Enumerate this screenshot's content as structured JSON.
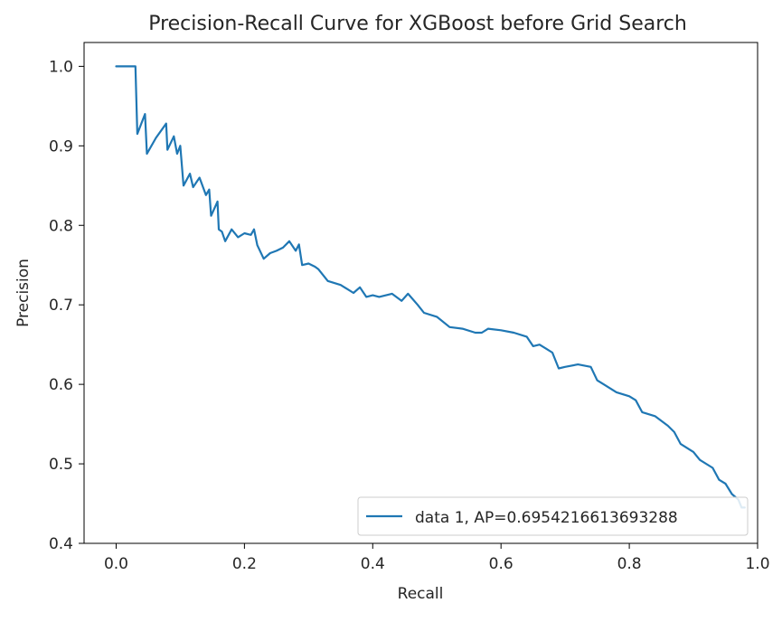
{
  "chart_data": {
    "type": "line",
    "title": "Precision-Recall Curve for XGBoost before Grid Search",
    "xlabel": "Recall",
    "ylabel": "Precision",
    "xlim": [
      -0.05,
      1.0
    ],
    "ylim": [
      0.4,
      1.03
    ],
    "xticks": [
      0.0,
      0.2,
      0.4,
      0.6,
      0.8,
      1.0
    ],
    "xtick_labels": [
      "0.0",
      "0.2",
      "0.4",
      "0.6",
      "0.8",
      "1.0"
    ],
    "yticks": [
      0.4,
      0.5,
      0.6,
      0.7,
      0.8,
      0.9,
      1.0
    ],
    "ytick_labels": [
      "0.4",
      "0.5",
      "0.6",
      "0.7",
      "0.8",
      "0.9",
      "1.0"
    ],
    "grid": false,
    "legend_position": "lower right",
    "series": [
      {
        "name": "data 1, AP=0.6954216613693288",
        "color": "#1f77b4",
        "x": [
          0.0,
          0.03,
          0.033,
          0.045,
          0.048,
          0.062,
          0.078,
          0.08,
          0.09,
          0.095,
          0.1,
          0.105,
          0.115,
          0.12,
          0.13,
          0.14,
          0.145,
          0.148,
          0.158,
          0.16,
          0.165,
          0.17,
          0.18,
          0.19,
          0.2,
          0.21,
          0.215,
          0.22,
          0.23,
          0.24,
          0.25,
          0.26,
          0.27,
          0.28,
          0.285,
          0.29,
          0.3,
          0.31,
          0.315,
          0.33,
          0.35,
          0.36,
          0.37,
          0.38,
          0.39,
          0.4,
          0.41,
          0.43,
          0.445,
          0.455,
          0.47,
          0.48,
          0.5,
          0.52,
          0.54,
          0.56,
          0.57,
          0.58,
          0.6,
          0.62,
          0.64,
          0.65,
          0.66,
          0.67,
          0.68,
          0.69,
          0.7,
          0.72,
          0.74,
          0.75,
          0.76,
          0.78,
          0.8,
          0.81,
          0.82,
          0.84,
          0.86,
          0.87,
          0.88,
          0.9,
          0.91,
          0.93,
          0.94,
          0.95,
          0.96,
          0.97,
          0.975,
          0.98
        ],
        "y": [
          1.0,
          1.0,
          0.915,
          0.94,
          0.89,
          0.91,
          0.928,
          0.895,
          0.912,
          0.89,
          0.9,
          0.85,
          0.865,
          0.848,
          0.86,
          0.838,
          0.845,
          0.812,
          0.83,
          0.795,
          0.792,
          0.78,
          0.795,
          0.785,
          0.79,
          0.788,
          0.795,
          0.775,
          0.758,
          0.765,
          0.768,
          0.772,
          0.78,
          0.768,
          0.776,
          0.75,
          0.752,
          0.748,
          0.745,
          0.73,
          0.725,
          0.72,
          0.715,
          0.722,
          0.71,
          0.712,
          0.71,
          0.714,
          0.705,
          0.714,
          0.7,
          0.69,
          0.685,
          0.672,
          0.67,
          0.665,
          0.665,
          0.67,
          0.668,
          0.665,
          0.66,
          0.648,
          0.65,
          0.645,
          0.64,
          0.62,
          0.622,
          0.625,
          0.622,
          0.605,
          0.6,
          0.59,
          0.585,
          0.58,
          0.565,
          0.56,
          0.548,
          0.54,
          0.525,
          0.515,
          0.505,
          0.495,
          0.48,
          0.475,
          0.462,
          0.455,
          0.445,
          0.445
        ]
      }
    ]
  }
}
